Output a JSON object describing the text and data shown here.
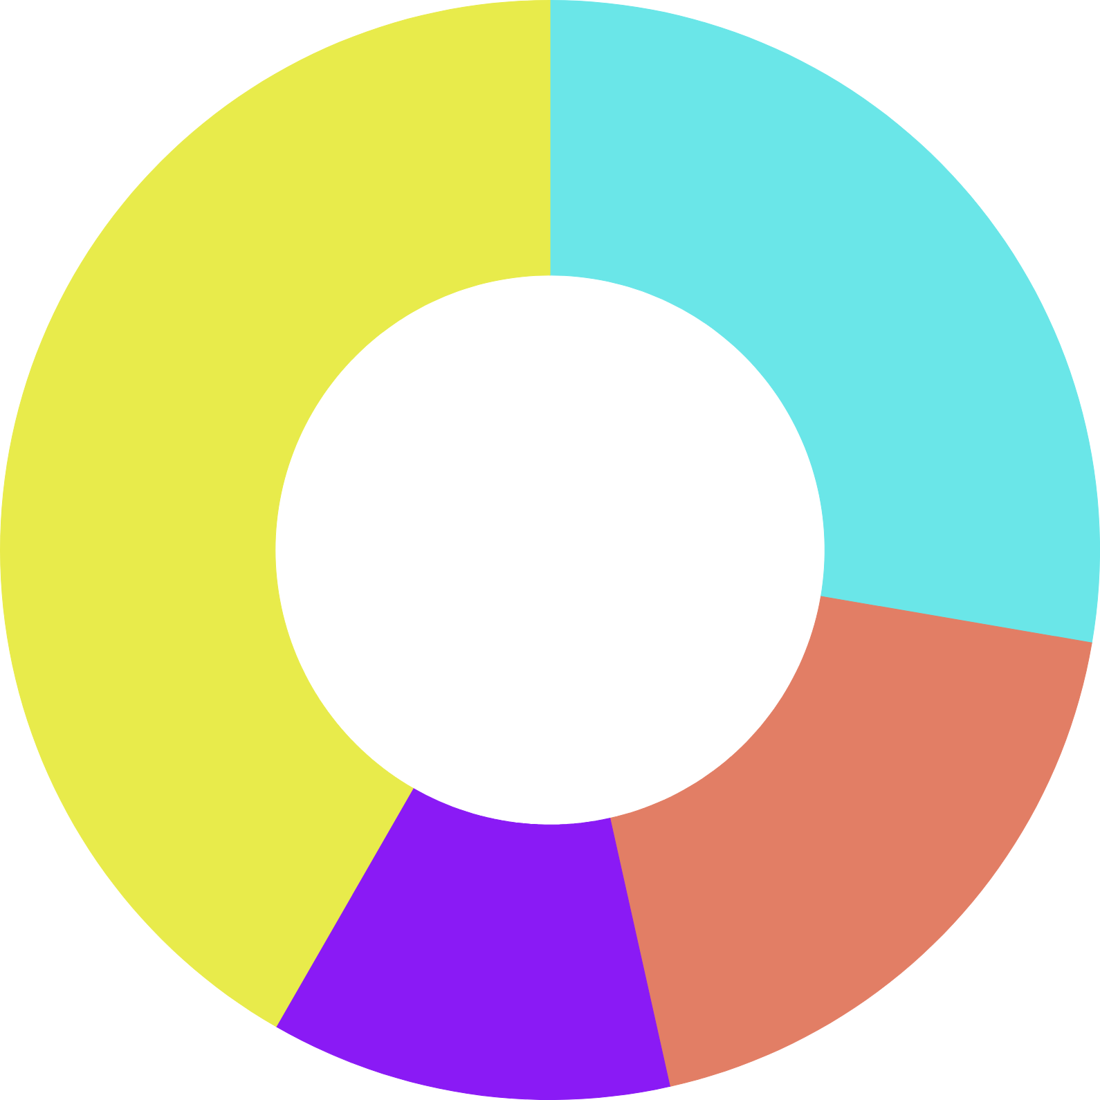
{
  "chart_data": {
    "type": "donut",
    "categories": [
      null,
      null,
      null,
      null
    ],
    "values": [
      27.7,
      18.8,
      11.8,
      41.7
    ],
    "colors": [
      "#6ae6e8",
      "#e27e65",
      "#8a1af5",
      "#e8eb4b"
    ]
  }
}
